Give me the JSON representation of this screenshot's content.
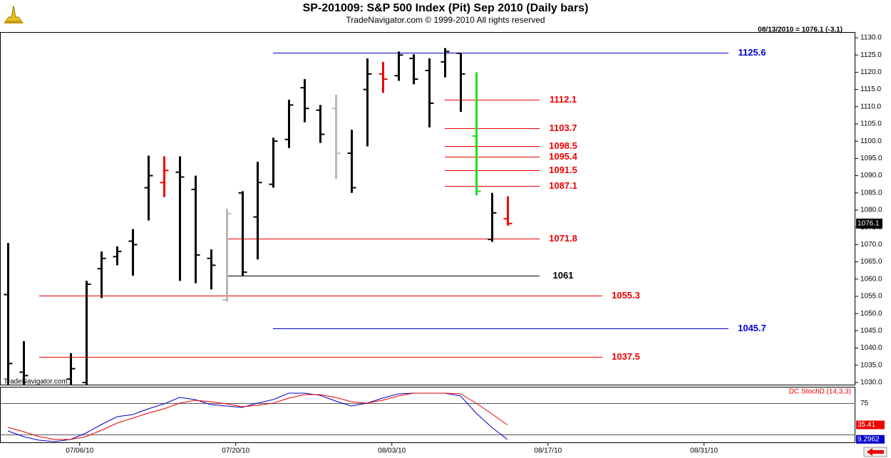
{
  "chart_data": [
    {
      "type": "ohlc",
      "title": "SP-201009:  S&P 500 Index (Pit) Sep 2010  (Daily bars)",
      "subtitle": "TradeNavigator.com © 1999-2010 All rights reserved",
      "info": "08/13/2010 = 1076.1 (-3.1)",
      "watermark": "TradeNavigator.com",
      "x": [
        0,
        1,
        4,
        5,
        6,
        7,
        8,
        9,
        10,
        11,
        12,
        13,
        14,
        15,
        16,
        17,
        18,
        19,
        20,
        21,
        22,
        23,
        24,
        25,
        26,
        27,
        28,
        29,
        30,
        31,
        32
      ],
      "open": [
        1055.5,
        1033,
        1031,
        1030,
        1063,
        1066.5,
        1071,
        1086.5,
        1088,
        1091,
        1086,
        1066,
        1054,
        1085,
        1078,
        1087.5,
        1100.5,
        1115.5,
        1109,
        1109.5,
        1096.5,
        1115,
        1119.5,
        1119,
        1124,
        1120.5,
        1123,
        1125.5,
        1101.5,
        1071.5,
        1077.5
      ],
      "high": [
        1070.5,
        1042,
        1038.5,
        1059.5,
        1068,
        1069.5,
        1074.5,
        1095.8,
        1095.6,
        1095.6,
        1090,
        1068.6,
        1080.3,
        1085.5,
        1094,
        1101,
        1112,
        1118,
        1110.5,
        1113.5,
        1103.3,
        1124,
        1123,
        1126,
        1125.2,
        1124,
        1127,
        1125.6,
        1120,
        1085,
        1084
      ],
      "low": [
        1029,
        1029,
        1029,
        1029,
        1054.5,
        1064,
        1061,
        1077,
        1083.8,
        1059.5,
        1058.8,
        1057,
        1053.5,
        1061,
        1065.7,
        1086.5,
        1098,
        1105.5,
        1099.5,
        1089,
        1085,
        1098.5,
        1114,
        1117.5,
        1116.5,
        1104,
        1118.5,
        1108.5,
        1084.3,
        1070.8,
        1075.5
      ],
      "close": [
        1035.5,
        1032,
        1034,
        1058.5,
        1066,
        1068,
        1070,
        1090,
        1091.5,
        1089.6,
        1067,
        1064,
        1079,
        1062,
        1088,
        1100,
        1110.5,
        1109.5,
        1102,
        1096.5,
        1086.5,
        1119.5,
        1118,
        1125,
        1118,
        1111,
        1126,
        1119.5,
        1085.5,
        1079.2,
        1076.1
      ],
      "colors": [
        "#000000",
        "#000000",
        "#000000",
        "#000000",
        "#000000",
        "#000000",
        "#000000",
        "#000000",
        "#ee0000",
        "#000000",
        "#000000",
        "#000000",
        "#b8b8b8",
        "#000000",
        "#000000",
        "#000000",
        "#000000",
        "#000000",
        "#000000",
        "#b8b8b8",
        "#000000",
        "#000000",
        "#ee0000",
        "#000000",
        "#000000",
        "#000000",
        "#000000",
        "#000000",
        "#22dd22",
        "#000000",
        "#ee0000"
      ],
      "levels": [
        {
          "value": 1125.6,
          "color": "#0000cc"
        },
        {
          "value": 1112.1,
          "color": "#ee0000"
        },
        {
          "value": 1103.7,
          "color": "#ee0000"
        },
        {
          "value": 1098.5,
          "color": "#ee0000"
        },
        {
          "value": 1095.4,
          "color": "#ee0000"
        },
        {
          "value": 1091.5,
          "color": "#ee0000"
        },
        {
          "value": 1087.1,
          "color": "#ee0000"
        },
        {
          "value": 1071.8,
          "color": "#ee0000"
        },
        {
          "value": 1061.0,
          "color": "#000000"
        },
        {
          "value": 1055.3,
          "color": "#ee0000"
        },
        {
          "value": 1045.7,
          "color": "#0000cc"
        },
        {
          "value": 1037.5,
          "color": "#ee0000"
        }
      ],
      "ylim": [
        1030,
        1130
      ],
      "yticks": [
        {
          "value": 1030,
          "label": "1030.0"
        },
        {
          "value": 1035,
          "label": "1035.0"
        },
        {
          "value": 1040,
          "label": "1040.0"
        },
        {
          "value": 1045,
          "label": "1045.0"
        },
        {
          "value": 1050,
          "label": "1050.0"
        },
        {
          "value": 1055,
          "label": "1055.0"
        },
        {
          "value": 1060,
          "label": "1060.0"
        },
        {
          "value": 1065,
          "label": "1065.0"
        },
        {
          "value": 1070,
          "label": "1070.0"
        },
        {
          "value": 1075,
          "label": "1075.0"
        },
        {
          "value": 1080,
          "label": "1080.0"
        },
        {
          "value": 1085,
          "label": "1085.0"
        },
        {
          "value": 1090,
          "label": "1090.0"
        },
        {
          "value": 1095,
          "label": "1095.0"
        },
        {
          "value": 1100,
          "label": "1100.0"
        },
        {
          "value": 1105,
          "label": "1105.0"
        },
        {
          "value": 1110,
          "label": "1110.0"
        },
        {
          "value": 1115,
          "label": "1115.0"
        },
        {
          "value": 1120,
          "label": "1120.0"
        },
        {
          "value": 1125,
          "label": "1125.0"
        },
        {
          "value": 1130,
          "label": "1130.0"
        }
      ],
      "xticks": [
        {
          "value": 4.6,
          "label": "07/06/10"
        },
        {
          "value": 14.6,
          "label": "07/20/10"
        },
        {
          "value": 24.6,
          "label": "08/03/10"
        },
        {
          "value": 34.6,
          "label": "08/17/10"
        },
        {
          "value": 44.6,
          "label": "08/31/10"
        }
      ]
    },
    {
      "type": "line",
      "title": "DC StochD (14,3,3)",
      "x": [
        0,
        1,
        2,
        3,
        4,
        5,
        6,
        7,
        8,
        9,
        10,
        11,
        12,
        13,
        14,
        15,
        16,
        17,
        18,
        19,
        20,
        21,
        22,
        23,
        24,
        25,
        26,
        27,
        28,
        29,
        30,
        31,
        32
      ],
      "series": [
        {
          "color": "#0000cc",
          "values": [
            24.5,
            14.2,
            7.7,
            5.2,
            9.0,
            20.6,
            36.1,
            50.3,
            54.1,
            64.4,
            73.5,
            85.1,
            81.2,
            72.2,
            69.6,
            67.0,
            74.8,
            81.2,
            92.8,
            92.8,
            88.9,
            78.6,
            69.6,
            74.8,
            83.8,
            91.5,
            92.8,
            92.8,
            92.8,
            87.7,
            56.7,
            30.9,
            9.2962
          ]
        },
        {
          "color": "#ee0000",
          "values": [
            30.9,
            23.2,
            14.2,
            9.0,
            9.0,
            14.2,
            25.8,
            38.7,
            47.7,
            56.7,
            64.4,
            74.8,
            79.9,
            77.3,
            73.5,
            68.3,
            70.9,
            74.8,
            83.8,
            90.2,
            90.2,
            85.1,
            77.3,
            74.8,
            79.9,
            87.7,
            92.8,
            92.8,
            92.8,
            91.5,
            74.8,
            55.4,
            35.41
          ]
        }
      ],
      "ylim": [
        0,
        100
      ],
      "yticks": [
        75
      ]
    }
  ]
}
